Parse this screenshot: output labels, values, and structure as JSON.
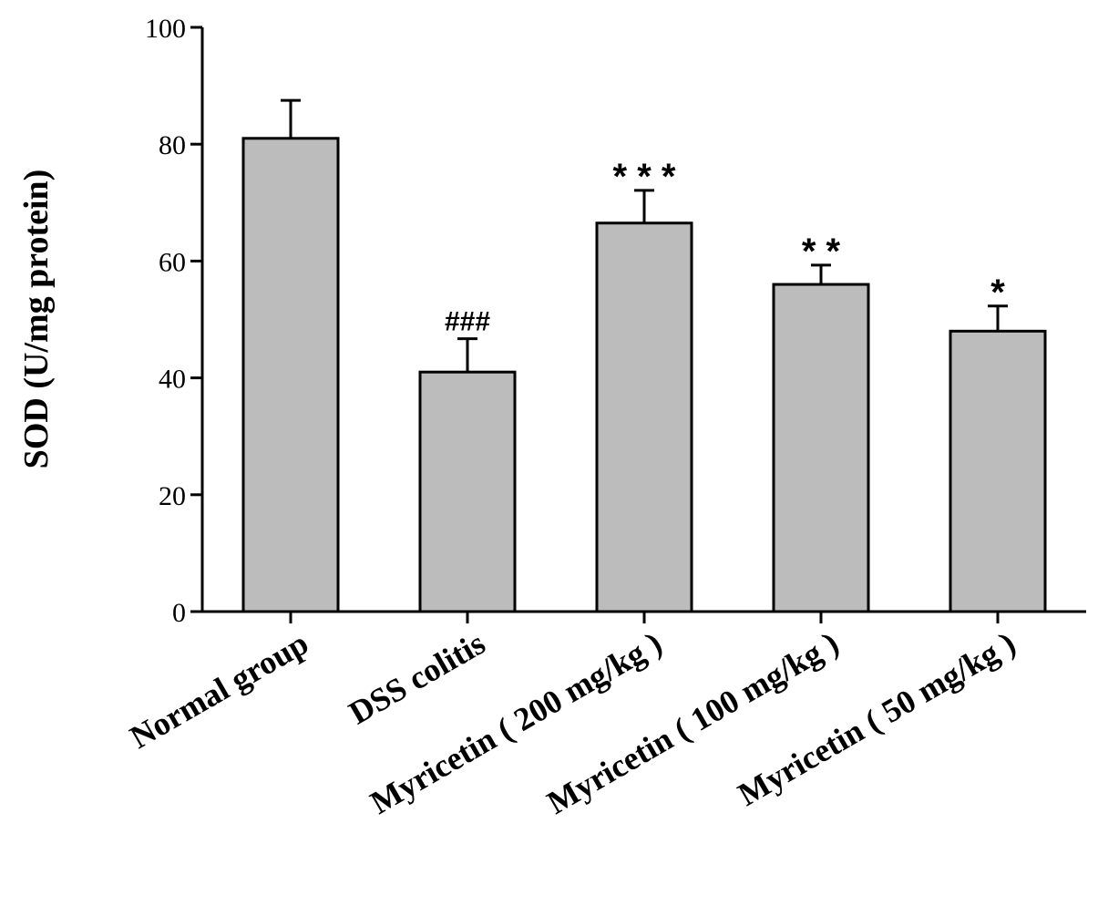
{
  "chart_data": {
    "type": "bar",
    "categories": [
      "Normal group",
      "DSS colitis",
      "Myricetin ( 200 mg/kg )",
      "Myricetin ( 100 mg/kg )",
      "Myricetin ( 50 mg/kg )"
    ],
    "values": [
      81,
      41,
      66.5,
      56,
      48
    ],
    "errors": [
      6.5,
      5.7,
      5.6,
      3.3,
      4.3
    ],
    "significance": [
      "",
      "###",
      "* * *",
      "* *",
      "*"
    ],
    "ylabel": "SOD (U/mg protein)",
    "xlabel": "",
    "title": "",
    "ylim": [
      0,
      100
    ],
    "yticks": [
      0,
      20,
      40,
      60,
      80,
      100
    ],
    "ytick_labels": [
      "0",
      "20",
      "40",
      "60",
      "80",
      "100"
    ],
    "grid": false,
    "bar_color": "#bcbcbc"
  }
}
